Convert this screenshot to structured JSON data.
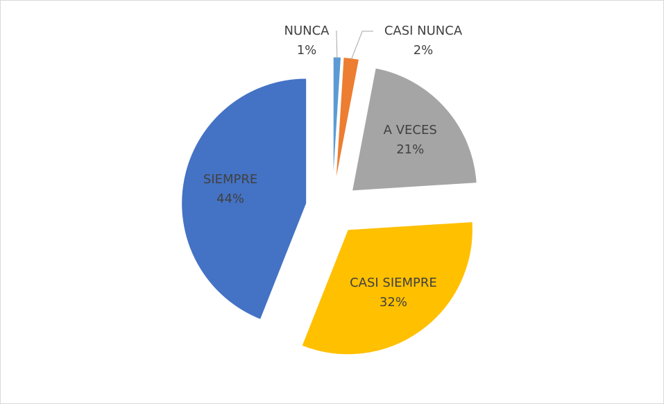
{
  "chart_data": {
    "type": "pie",
    "categories": [
      "NUNCA",
      "CASI NUNCA",
      "A VECES",
      "CASI SIEMPRE",
      "SIEMPRE"
    ],
    "values": [
      1,
      2,
      21,
      32,
      44
    ],
    "value_labels": [
      "1%",
      "2%",
      "21%",
      "32%",
      "44%"
    ],
    "colors": [
      "#5b9bd5",
      "#ed7d31",
      "#a5a5a5",
      "#ffc000",
      "#4472c4"
    ],
    "exploded": true
  }
}
